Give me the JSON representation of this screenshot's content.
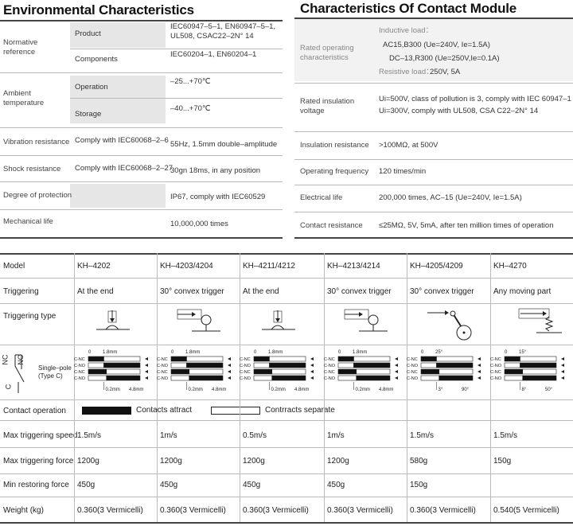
{
  "env": {
    "title": "Environmental Characteristics",
    "rows": [
      {
        "label": "Normative reference",
        "sub": "Product",
        "value": "IEC60947–5–1, EN60947–5–1, UL508, CSAC22–2N° 14"
      },
      {
        "sub": "Components",
        "value": "IEC60204–1, EN60204–1"
      },
      {
        "label": "Ambient temperature",
        "sub": "Operation",
        "value": "–25...+70℃"
      },
      {
        "sub": "Storage",
        "value": "–40...+70℃"
      },
      {
        "label": "Vibration resistance",
        "sub": "Comply with IEC60068–2–6",
        "value": "55Hz, 1.5mm double–amplitude"
      },
      {
        "label": "Shock resistance",
        "sub": "Comply with IEC60068–2–27",
        "value": "30gn 18ms, in any position"
      },
      {
        "label": "Degree of protection",
        "sub": "",
        "value": "IP67, comply with IEC60529"
      },
      {
        "label": "Mechanical life",
        "sub": "",
        "value": "10,000,000 times"
      }
    ]
  },
  "contact": {
    "title": "Characteristics Of Contact Module",
    "rated_op_label": "Rated operating characteristics",
    "inductive_label": "Inductive load：",
    "ac_line": "AC15,B300 (Ue=240V, Ie=1.5A)",
    "dc_line": "DC–13,R300 (Ue=250V,Ie=0.1A)",
    "resistive_label": "Resistive load：",
    "resistive_value": "250V, 5A",
    "insulation_voltage_label": "Rated insulation voltage",
    "insulation_voltage_1": "Ui=500V, class of pollution is 3, comply with IEC 60947–1",
    "insulation_voltage_2": "Ui=300V, comply with UL508, CSA C22–2N° 14",
    "rows": [
      {
        "label": "Insulation resistance",
        "value": ">100MΩ, at 500V"
      },
      {
        "label": "Operating frequency",
        "value": "120 times/min"
      },
      {
        "label": "Electrical life",
        "value": "200,000 times, AC–15 (Ue=240V, Ie=1.5A)"
      },
      {
        "label": "Contact resistance",
        "value": "≤25MΩ, 5V, 5mA, after ten million times of operation"
      }
    ]
  },
  "models": {
    "row_labels": {
      "model": "Model",
      "triggering": "Triggering",
      "triggering_type": "Triggering type",
      "switch_label": "Single–pole (Type C)",
      "contact_operation": "Contact operation",
      "max_speed": "Max triggering speed",
      "max_force": "Max triggering force",
      "min_force": "Min restoring force",
      "weight": "Weight (kg)"
    },
    "nc": "NC",
    "no": "NO",
    "c": "C",
    "legend_attract": "Contacts attract",
    "legend_separate": "Contrracts separate",
    "contact_labels": [
      "C-NC",
      "C-NO",
      "C-NC",
      "C-NO"
    ],
    "items": [
      {
        "model": "KH–4202",
        "trigger": "At the end",
        "speed": "1.5m/s",
        "force": "1200g",
        "restore": "450g",
        "weight": "0.360(3 Vermicelli)",
        "t0": "0",
        "t1": "1.8mm",
        "b1": "0.2mm",
        "b2": "4.8mm"
      },
      {
        "model": "KH–4203/4204",
        "trigger": "30°  convex trigger",
        "speed": "1m/s",
        "force": "1200g",
        "restore": "450g",
        "weight": "0.360(3 Vermicelli)",
        "t0": "0",
        "t1": "1.8mm",
        "b1": "0.2mm",
        "b2": "4.8mm"
      },
      {
        "model": "KH–4211/4212",
        "trigger": "At the end",
        "speed": "0.5m/s",
        "force": "1200g",
        "restore": "450g",
        "weight": "0.360(3 Vermicelli)",
        "t0": "0",
        "t1": "1.8mm",
        "b1": "0.2mm",
        "b2": "4.8mm"
      },
      {
        "model": "KH–4213/4214",
        "trigger": "30°  convex trigger",
        "speed": "1m/s",
        "force": "1200g",
        "restore": "450g",
        "weight": "0.360(3 Vermicelli)",
        "t0": "0",
        "t1": "1.8mm",
        "b1": "0.2mm",
        "b2": "4.8mm"
      },
      {
        "model": "KH–4205/4209",
        "trigger": "30°  convex trigger",
        "speed": "1.5m/s",
        "force": "580g",
        "restore": "150g",
        "weight": "0.360(3 Vermicelli)",
        "t0": "0",
        "t1": "25°",
        "b1": "3°",
        "b2": "90°"
      },
      {
        "model": "KH–4270",
        "trigger": "Any moving part",
        "speed": "1.5m/s",
        "force": "150g",
        "restore": "",
        "weight": "0.540(5 Vermicelli)",
        "t0": "0",
        "t1": "15°",
        "b1": "8°",
        "b2": "50°"
      }
    ]
  },
  "colors": {
    "accent_grey": "#e6e6e6",
    "rule": "#444444",
    "black_bar": "#111111"
  }
}
